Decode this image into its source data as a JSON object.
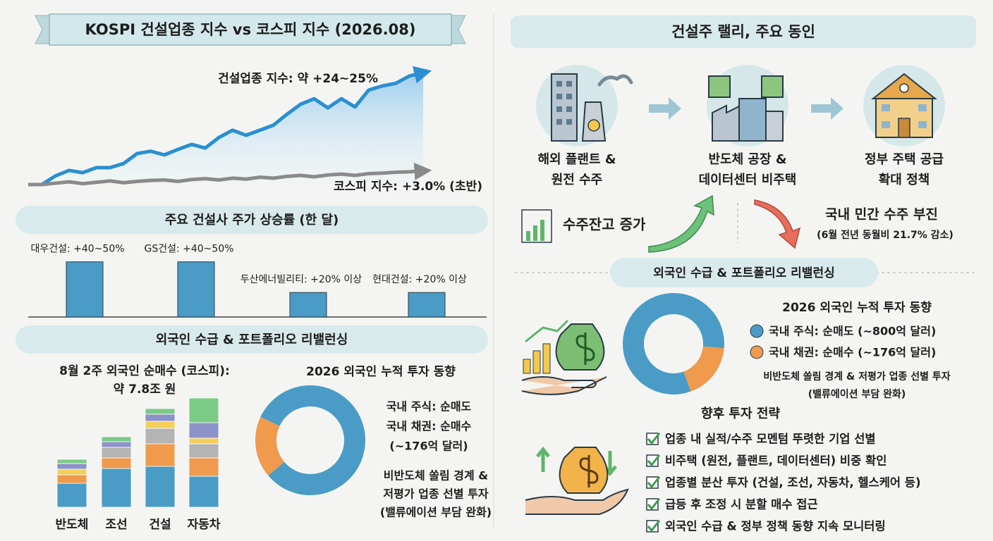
{
  "chart_data": [
    {
      "type": "line",
      "title": "KOSPI 건설업종 지수 vs 코스피 지수 (2026.08)",
      "categories": [
        null,
        null,
        null,
        null,
        null,
        null,
        null,
        null,
        null,
        null,
        null,
        null,
        null,
        null,
        null,
        null,
        null,
        null,
        null,
        null,
        null,
        null,
        null,
        null,
        null,
        null,
        null,
        null,
        null,
        null
      ],
      "series": [
        {
          "name": "건설업종 지수: 약 +24~25%",
          "color": "#2a8fd0",
          "values": [
            0,
            0,
            1.9,
            3.1,
            2.6,
            3.7,
            3.7,
            4.6,
            6.8,
            7.3,
            6.5,
            7.7,
            8.8,
            8.0,
            10.3,
            11.9,
            10.8,
            11.9,
            13.0,
            15.4,
            17.6,
            18.8,
            16.8,
            18.8,
            17.0,
            20.7,
            21.6,
            22.2,
            23.8,
            24.5
          ]
        },
        {
          "name": "코스피 지수: +3.0% (초반)",
          "color": "#8a8a8a",
          "values": [
            0,
            0,
            0.3,
            0.6,
            0.2,
            0.5,
            0.8,
            0.4,
            0.7,
            0.9,
            1.0,
            0.7,
            1.1,
            1.3,
            1.0,
            1.4,
            1.2,
            1.6,
            1.4,
            1.8,
            2.0,
            1.7,
            2.1,
            2.3,
            2.0,
            2.4,
            2.5,
            2.7,
            2.8,
            3.0
          ]
        }
      ],
      "ylim": [
        0,
        25
      ]
    },
    {
      "type": "bar",
      "title": "주요 건설사 주가 상승률 (한 달)",
      "categories": [
        "대우건설: +40~50%",
        "GS건설: +40~50%",
        "두산에너빌리티: +20% 이상",
        "현대건설: +20% 이상"
      ],
      "values": [
        45,
        45,
        20,
        20
      ],
      "color": "#4a9cc6",
      "ylim": [
        0,
        50
      ]
    },
    {
      "type": "stacked-bar",
      "title": [
        "8월 2주 외국인 순매수 (코스피):",
        "약 7.8조 원"
      ],
      "categories": [
        "반도체",
        "조선",
        "건설",
        "자동차"
      ],
      "series": [
        {
          "color": "#4a9cc6",
          "values": [
            34,
            55,
            58,
            44
          ]
        },
        {
          "color": "#ef9a4d",
          "values": [
            12,
            15,
            32,
            26
          ]
        },
        {
          "color": "#b4b4b4",
          "values": [
            0,
            15,
            22,
            20
          ]
        },
        {
          "color": "#f4cf5a",
          "values": [
            8,
            0,
            10,
            8
          ]
        },
        {
          "color": "#8c93c8",
          "values": [
            8,
            8,
            10,
            22
          ]
        },
        {
          "color": "#7ccb86",
          "values": [
            6,
            7,
            8,
            35
          ]
        }
      ],
      "ylim": [
        0,
        160
      ]
    },
    {
      "type": "donut",
      "title": "2026 외국인 누적 투자 동향",
      "labels": [
        [
          "국내 주식: 순매도"
        ],
        [
          "국내 채권: 순매수",
          "(~176억 달러)"
        ]
      ],
      "values": [
        800,
        176
      ],
      "colors": [
        "#4a9cc6",
        "#ef9a4d"
      ],
      "note": [
        "비반도체 쏠림 경계 &",
        "저평가 업종 선별 투자",
        "(밸류에이션 부담 완화)"
      ]
    },
    {
      "type": "donut",
      "title": "2026 외국인 누적 투자 동향",
      "categories": [
        "국내 주식: 순매도 (~800억 달러)",
        "국내 채권: 순매수 (~176억 달러)"
      ],
      "values": [
        800,
        176
      ],
      "colors": [
        "#4a9cc6",
        "#ef9a4d"
      ],
      "note": [
        "비반도체 쏠림 경계 & 저평가 업종 선별 투자",
        "(밸류에이션 부담 완화)"
      ]
    }
  ],
  "left_section_title": "외국인 수급 & 포트폴리오 리밸런싱",
  "right": {
    "title": "건설주 랠리, 주요 동인",
    "drivers": [
      [
        "해외 플랜트 &",
        "원전 수주"
      ],
      [
        "반도체 공장 &",
        "데이터센터 비주택"
      ],
      [
        "정부 주택 공급",
        "확대 정책"
      ]
    ],
    "up_note": "수주잔고 증가",
    "down_note": [
      "국내 민간 수주 부진",
      "(6월 전년 동월비 21.7% 감소)"
    ],
    "section_title": "외국인 수급 & 포트폴리오 리밸런싱",
    "strategy_title": "향후 투자 전략",
    "strategy": [
      "업종 내 실적/수주 모멘텀 뚜렷한 기업 선별",
      "비주택 (원전, 플랜트, 데이터센터) 비중 확인",
      "업종별 분산 투자 (건설, 조선, 자동차, 헬스케어 등)",
      "급등 후 조정 시 분할 매수 접근",
      "외국인 수급 & 정부 정책 동향 지속 모니터링"
    ]
  }
}
